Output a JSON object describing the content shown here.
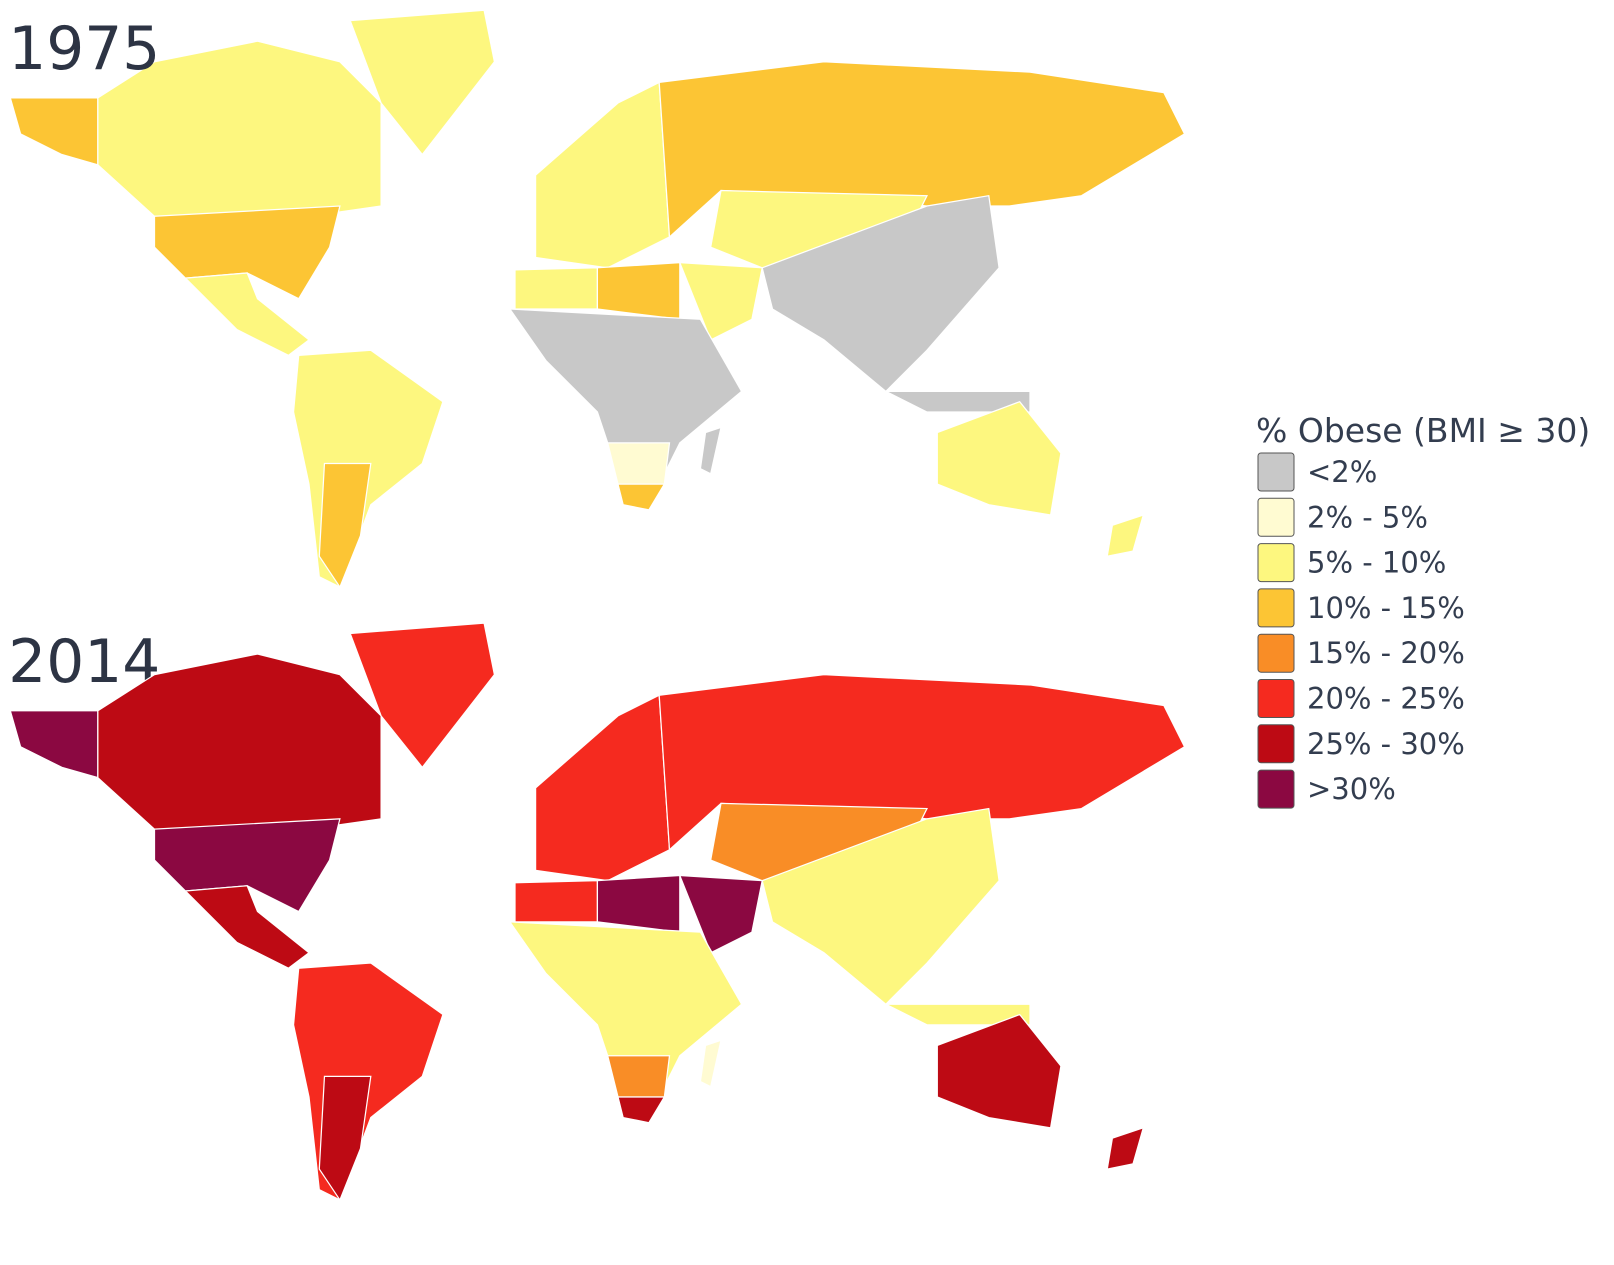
{
  "maps": [
    {
      "year": "1975"
    },
    {
      "year": "2014"
    }
  ],
  "legend": {
    "title": "% Obese (BMI ≥ 30)",
    "items": [
      {
        "label": "<2%",
        "color": "#c8c8c8"
      },
      {
        "label": "2% - 5%",
        "color": "#fffbd2"
      },
      {
        "label": "5% - 10%",
        "color": "#fdf77f"
      },
      {
        "label": "10% - 15%",
        "color": "#fcc534"
      },
      {
        "label": "15% - 20%",
        "color": "#f98d26"
      },
      {
        "label": "20% - 25%",
        "color": "#f52a1f"
      },
      {
        "label": "25% - 30%",
        "color": "#bd0a14"
      },
      {
        "label": ">30%",
        "color": "#8b0841"
      }
    ]
  }
}
